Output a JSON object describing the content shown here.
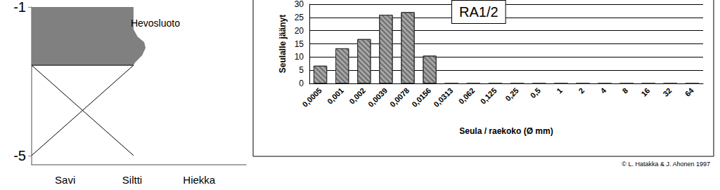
{
  "chart_data": [
    {
      "type": "area",
      "title": "Hevosluoto",
      "x": [
        2.02,
        2.02,
        2.08,
        2.18,
        2.2,
        2.15,
        2.04,
        2.02
      ],
      "values": [
        -1,
        -1.6,
        -1.8,
        -1.95,
        -2.1,
        -2.3,
        -2.5,
        -2.57
      ],
      "color": "#808080",
      "xlim": [
        0.5,
        3.7
      ],
      "xticks": [
        {
          "value": 1,
          "label": "Savi"
        },
        {
          "value": 2,
          "label": "Siltti"
        },
        {
          "value": 3,
          "label": "Hiekka"
        }
      ],
      "ylim": [
        -5.25,
        -1
      ],
      "yticks": [
        -5,
        -1
      ]
    },
    {
      "type": "bar",
      "categories": [
        "0,0005",
        "0,001",
        "0,002",
        "0,0039",
        "0,0078",
        "0,0156",
        "0,0313",
        "0,062",
        "0,125",
        "0,25",
        "0,5",
        "1",
        "2",
        "4",
        "8",
        "16",
        "32",
        "64"
      ],
      "values": [
        6.7,
        13.3,
        16.8,
        26,
        27,
        10.5,
        0,
        0,
        0,
        0,
        0,
        0,
        0,
        0,
        0,
        0,
        0,
        0
      ],
      "color": "#a6a6a6",
      "y_label": "Seulalle jäänyt",
      "x_label": "Seula / raekoko (Ø mm)",
      "ylim": [
        0,
        30
      ],
      "yticks": [
        0,
        5,
        10,
        15,
        20,
        25,
        30
      ],
      "grid": true,
      "annotations": [
        "RA1/2",
        "© L. Hatakka & J. Ahonen 1997"
      ]
    }
  ]
}
